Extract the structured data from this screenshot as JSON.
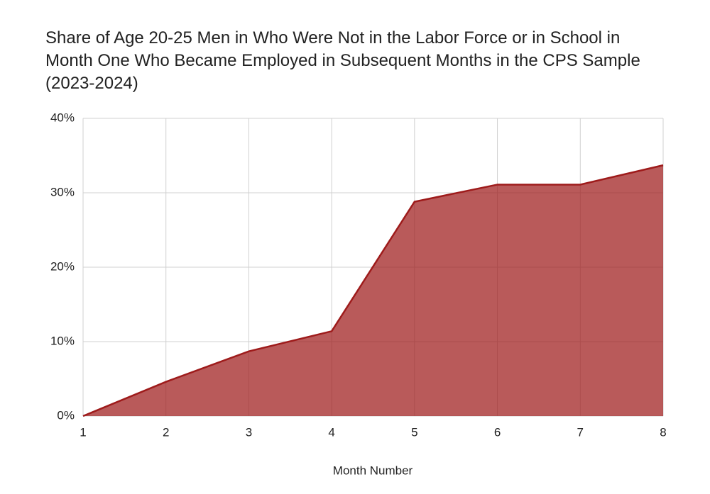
{
  "chart_data": {
    "type": "area",
    "title": "Share of Age 20-25 Men in Who Were Not in the Labor Force or in School in Month One Who Became Employed in Subsequent Months in the CPS Sample (2023-2024)",
    "x_label": "Month Number",
    "x": [
      1,
      2,
      3,
      4,
      5,
      6,
      7,
      8
    ],
    "values": [
      0,
      4.6,
      8.7,
      11.4,
      28.8,
      31.1,
      31.1,
      33.7
    ],
    "color": "#9e1b1b",
    "xlim": [
      1,
      8
    ],
    "xticks": [
      1,
      2,
      3,
      4,
      5,
      6,
      7,
      8
    ],
    "ylim": [
      0,
      40
    ],
    "yticks": [
      {
        "value": 0,
        "label": "0%"
      },
      {
        "value": 10,
        "label": "10%"
      },
      {
        "value": 20,
        "label": "20%"
      },
      {
        "value": 30,
        "label": "30%"
      },
      {
        "value": 40,
        "label": "40%"
      }
    ],
    "grid": true
  }
}
